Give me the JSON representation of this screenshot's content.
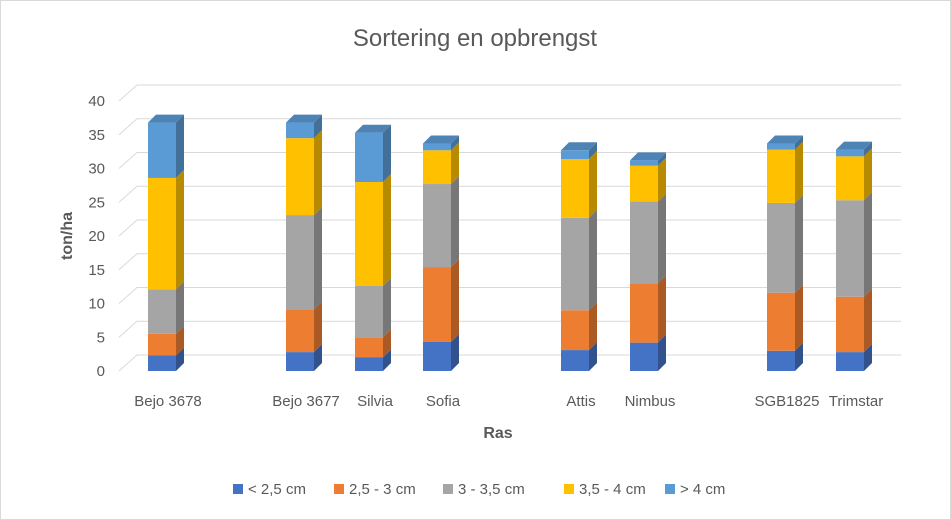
{
  "chart_data": {
    "type": "bar",
    "stacked": true,
    "three_d": true,
    "title": "Sortering en opbrengst",
    "xlabel": "Ras",
    "ylabel": "ton/ha",
    "ylim": [
      0,
      40
    ],
    "yticks": [
      "0",
      "5",
      "10",
      "15",
      "20",
      "25",
      "30",
      "35",
      "40"
    ],
    "grid": true,
    "legend_position": "bottom",
    "categories": [
      "Bejo 3678",
      "Bejo 3677",
      "Silvia",
      "Sofia",
      "Attis",
      "Nimbus",
      "SGB1825",
      "Trimstar"
    ],
    "series": [
      {
        "name": "< 2,5 cm",
        "color": "#4472c4",
        "values": [
          2.3,
          2.8,
          2.0,
          4.3,
          3.1,
          4.2,
          3.0,
          2.8
        ]
      },
      {
        "name": "2,5 - 3 cm",
        "color": "#ed7d31",
        "values": [
          3.2,
          6.3,
          3.0,
          11.1,
          5.9,
          8.8,
          8.6,
          8.2
        ]
      },
      {
        "name": "3 - 3,5 cm",
        "color": "#a5a5a5",
        "values": [
          6.6,
          14.0,
          7.6,
          12.3,
          13.7,
          12.1,
          13.3,
          14.3
        ]
      },
      {
        "name": "3,5 - 4 cm",
        "color": "#ffc000",
        "values": [
          16.5,
          11.4,
          15.4,
          5.0,
          8.7,
          5.3,
          7.9,
          6.5
        ]
      },
      {
        "name": "> 4 cm",
        "color": "#5b9bd5",
        "values": [
          8.2,
          2.3,
          7.3,
          1.0,
          1.3,
          0.8,
          0.9,
          1.0
        ]
      }
    ]
  }
}
